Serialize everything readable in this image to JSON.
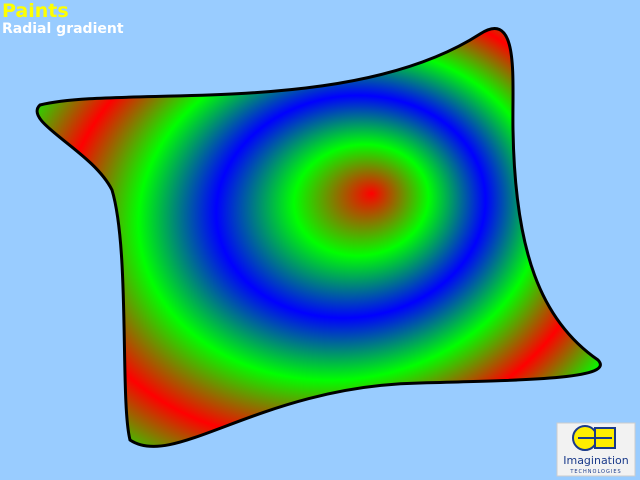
{
  "header": {
    "title": "Paints",
    "subtitle": "Radial gradient"
  },
  "logo": {
    "name": "Imagination",
    "tagline": "TECHNOLOGIES"
  }
}
